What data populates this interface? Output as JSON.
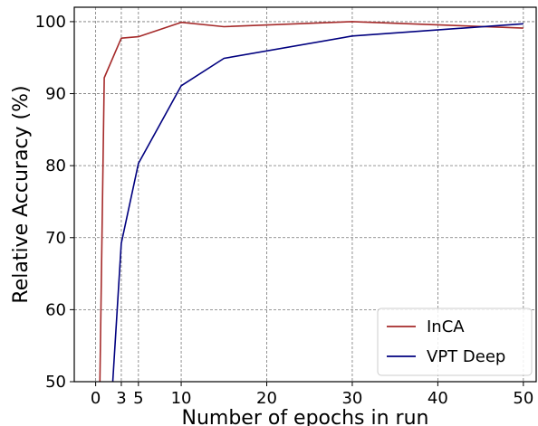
{
  "chart_data": {
    "type": "line",
    "xlabel": "Number of epochs in run",
    "ylabel": "Relative Accuracy (%)",
    "xlim": [
      -2.5,
      51.5
    ],
    "ylim": [
      50,
      102
    ],
    "xticks": [
      0,
      3,
      5,
      10,
      20,
      30,
      40,
      50
    ],
    "yticks": [
      50,
      60,
      70,
      80,
      90,
      100
    ],
    "grid": true,
    "legend_position": "lower-right",
    "series": [
      {
        "name": "InCA",
        "color": "#a52a2a",
        "x": [
          0.5,
          1,
          3,
          5,
          10,
          15,
          30,
          50
        ],
        "y": [
          50,
          92.2,
          97.7,
          97.9,
          99.9,
          99.3,
          100.0,
          99.1
        ]
      },
      {
        "name": "VPT Deep",
        "color": "#00007f",
        "x": [
          2,
          3,
          5,
          10,
          15,
          30,
          50
        ],
        "y": [
          50,
          69.2,
          80.3,
          91.1,
          94.9,
          98.0,
          99.7
        ]
      }
    ]
  }
}
